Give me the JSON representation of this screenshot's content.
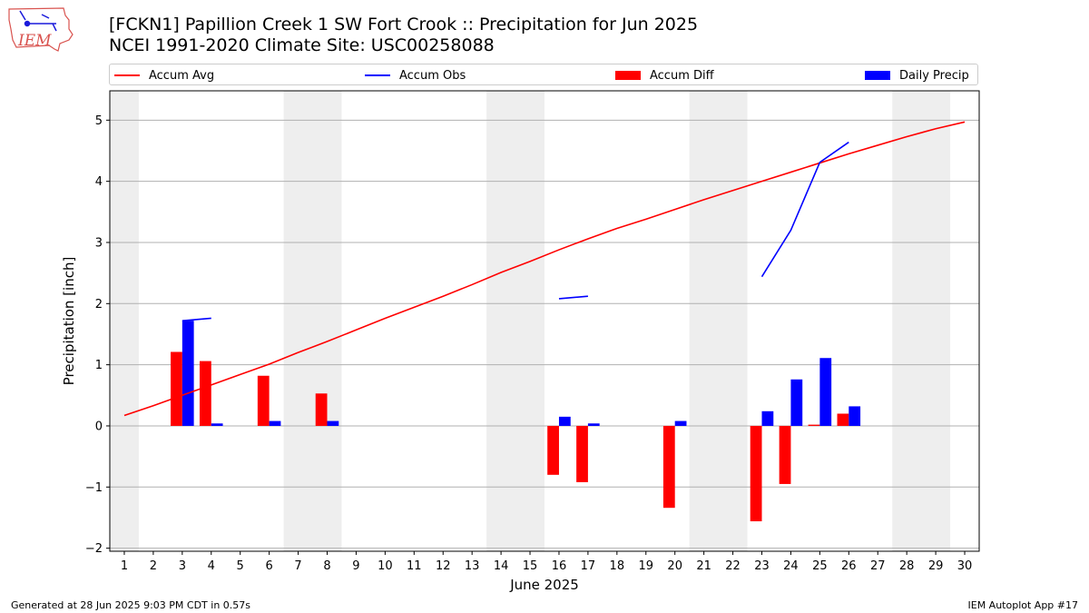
{
  "logo": {
    "text": "IEM"
  },
  "title_line1": "[FCKN1] Papillion Creek 1 SW Fort Crook :: Precipitation for Jun 2025",
  "title_line2": "NCEI 1991-2020 Climate Site: USC00258088",
  "footer_left": "Generated at 28 Jun 2025 9:03 PM CDT in 0.57s",
  "footer_right": "IEM Autoplot App #17",
  "colors": {
    "accum_avg": "#ff0000",
    "accum_obs": "#0000ff",
    "accum_diff": "#ff0000",
    "daily_precip": "#0000ff",
    "weekend_shade": "#eeeeee",
    "grid": "#b0b0b0"
  },
  "legend": [
    {
      "label": "Accum Avg",
      "kind": "line",
      "color_key": "accum_avg"
    },
    {
      "label": "Accum Obs",
      "kind": "line",
      "color_key": "accum_obs"
    },
    {
      "label": "Accum Diff",
      "kind": "bar",
      "color_key": "accum_diff"
    },
    {
      "label": "Daily Precip",
      "kind": "bar",
      "color_key": "daily_precip"
    }
  ],
  "chart_data": {
    "type": "bar",
    "xlabel": "June 2025",
    "ylabel": "Precipitation [inch]",
    "xlim": [
      0.5,
      30.5
    ],
    "ylim": [
      -2.05,
      5.48
    ],
    "yticks": [
      -2,
      -1,
      0,
      1,
      2,
      3,
      4,
      5
    ],
    "ytick_labels": [
      "−2",
      "−1",
      "0",
      "1",
      "2",
      "3",
      "4",
      "5"
    ],
    "days": [
      1,
      2,
      3,
      4,
      5,
      6,
      7,
      8,
      9,
      10,
      11,
      12,
      13,
      14,
      15,
      16,
      17,
      18,
      19,
      20,
      21,
      22,
      23,
      24,
      25,
      26,
      27,
      28,
      29,
      30
    ],
    "grid": "horizontal",
    "legend_placement": "top",
    "weekend_shading": [
      [
        0.5,
        1.5
      ],
      [
        6.5,
        8.5
      ],
      [
        13.5,
        15.5
      ],
      [
        20.5,
        22.5
      ],
      [
        27.5,
        29.5
      ]
    ],
    "series": [
      {
        "name": "Accum Avg",
        "kind": "line",
        "points": [
          [
            1,
            0.17
          ],
          [
            2,
            0.33
          ],
          [
            3,
            0.5
          ],
          [
            4,
            0.67
          ],
          [
            5,
            0.84
          ],
          [
            6,
            1.01
          ],
          [
            7,
            1.2
          ],
          [
            8,
            1.38
          ],
          [
            9,
            1.57
          ],
          [
            10,
            1.76
          ],
          [
            11,
            1.94
          ],
          [
            12,
            2.12
          ],
          [
            13,
            2.31
          ],
          [
            14,
            2.51
          ],
          [
            15,
            2.69
          ],
          [
            16,
            2.88
          ],
          [
            17,
            3.06
          ],
          [
            18,
            3.23
          ],
          [
            19,
            3.38
          ],
          [
            20,
            3.54
          ],
          [
            21,
            3.7
          ],
          [
            22,
            3.85
          ],
          [
            23,
            4.0
          ],
          [
            24,
            4.15
          ],
          [
            25,
            4.3
          ],
          [
            26,
            4.45
          ],
          [
            27,
            4.59
          ],
          [
            28,
            4.73
          ],
          [
            29,
            4.86
          ],
          [
            30,
            4.97
          ]
        ]
      },
      {
        "name": "Accum Obs",
        "kind": "line",
        "segments": [
          [
            [
              3,
              1.72
            ],
            [
              4,
              1.76
            ]
          ],
          [
            [
              16,
              2.08
            ],
            [
              17,
              2.12
            ]
          ],
          [
            [
              23,
              2.44
            ],
            [
              24,
              3.2
            ],
            [
              25,
              4.31
            ],
            [
              26,
              4.64
            ]
          ]
        ]
      },
      {
        "name": "Accum Diff",
        "kind": "bar",
        "points": [
          [
            3,
            1.21
          ],
          [
            4,
            1.06
          ],
          [
            6,
            0.82
          ],
          [
            8,
            0.53
          ],
          [
            16,
            -0.8
          ],
          [
            17,
            -0.92
          ],
          [
            20,
            -1.34
          ],
          [
            23,
            -1.56
          ],
          [
            24,
            -0.95
          ],
          [
            25,
            0.02
          ],
          [
            26,
            0.2
          ]
        ]
      },
      {
        "name": "Daily Precip",
        "kind": "bar",
        "points": [
          [
            3,
            1.72
          ],
          [
            4,
            0.04
          ],
          [
            6,
            0.08
          ],
          [
            8,
            0.08
          ],
          [
            16,
            0.15
          ],
          [
            17,
            0.04
          ],
          [
            20,
            0.08
          ],
          [
            23,
            0.24
          ],
          [
            24,
            0.76
          ],
          [
            25,
            1.11
          ],
          [
            26,
            0.32
          ]
        ]
      }
    ]
  }
}
